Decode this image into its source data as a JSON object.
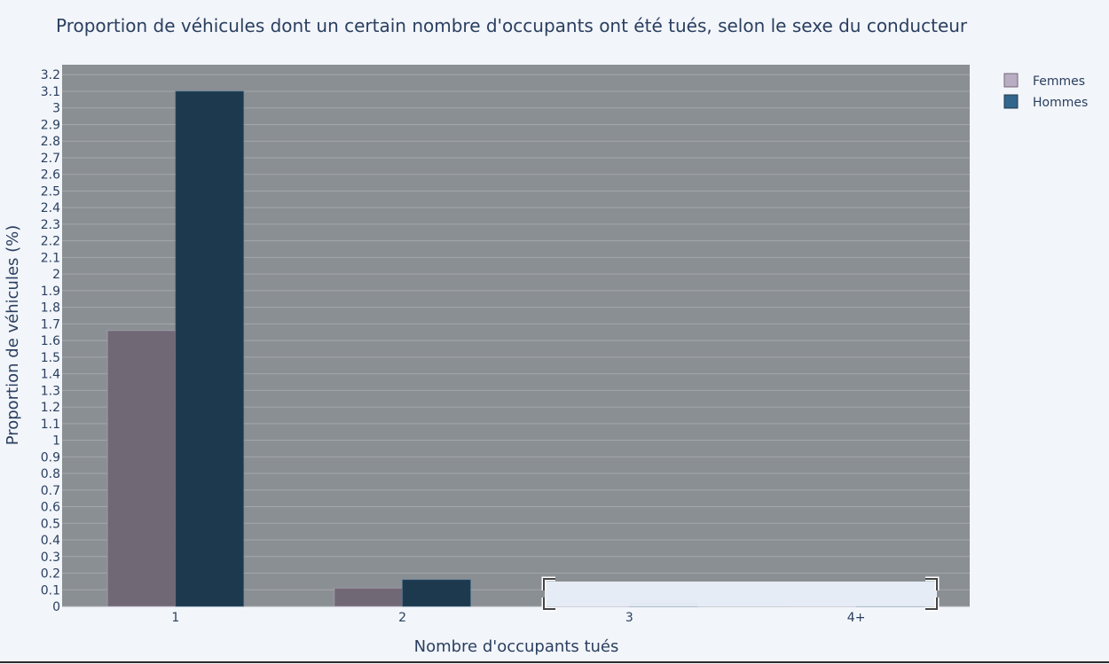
{
  "chart_data": {
    "type": "bar",
    "title": "Proportion de véhicules dont un certain nombre d'occupants ont été tués, selon le sexe du conducteur",
    "xlabel": "Nombre d'occupants tués",
    "ylabel": "Proportion de véhicules (%)",
    "categories": [
      "1",
      "2",
      "3",
      "4+"
    ],
    "series": [
      {
        "name": "Femmes",
        "values": [
          1.66,
          0.11,
          0.015,
          0.005
        ],
        "color": "#b9adc4"
      },
      {
        "name": "Hommes",
        "values": [
          3.1,
          0.16,
          0.025,
          0.01
        ],
        "color": "#33668c"
      }
    ],
    "ylim": [
      0,
      3.26
    ],
    "yticks": [
      "0",
      "0.1",
      "0.2",
      "0.3",
      "0.4",
      "0.5",
      "0.6",
      "0.7",
      "0.8",
      "0.9",
      "1",
      "1.1",
      "1.2",
      "1.3",
      "1.4",
      "1.5",
      "1.6",
      "1.7",
      "1.8",
      "1.9",
      "2",
      "2.1",
      "2.2",
      "2.3",
      "2.4",
      "2.5",
      "2.6",
      "2.7",
      "2.8",
      "2.9",
      "3",
      "3.1",
      "3.2"
    ],
    "grid": true,
    "legend": "top-right"
  },
  "colors": {
    "plot_background": "#8a8f94",
    "page_background": "#f2f5fa",
    "text": "#2a3f5f",
    "femmes_dark": "#716875",
    "hommes_dark": "#1d394d"
  }
}
